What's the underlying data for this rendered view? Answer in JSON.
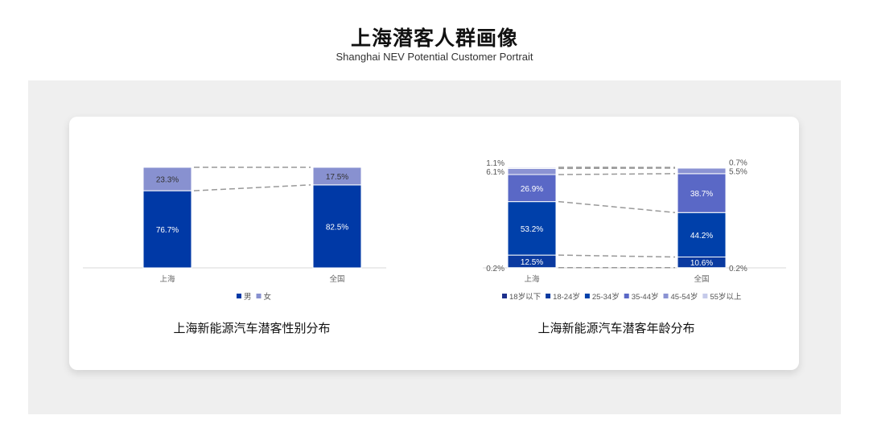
{
  "header": {
    "title": "上海潜客人群画像",
    "subtitle": "Shanghai NEV Potential Customer Portrait"
  },
  "chart_data": [
    {
      "type": "bar",
      "stacked": true,
      "title": "上海新能源汽车潜客性别分布",
      "categories": [
        "上海",
        "全国"
      ],
      "series": [
        {
          "name": "男",
          "values": [
            76.7,
            82.5
          ],
          "color": "#0039a6",
          "label_color": "#ffffff"
        },
        {
          "name": "女",
          "values": [
            23.3,
            17.5
          ],
          "color": "#8891d0",
          "label_color": "#333333"
        }
      ],
      "labels": [
        [
          "76.7%",
          "82.5%"
        ],
        [
          "23.3%",
          "17.5%"
        ]
      ],
      "ylim": [
        0,
        100
      ],
      "legend": "bottom",
      "grid": false
    },
    {
      "type": "bar",
      "stacked": true,
      "title": "上海新能源汽车潜客年龄分布",
      "categories": [
        "上海",
        "全国"
      ],
      "series": [
        {
          "name": "18岁以下",
          "values": [
            0.2,
            0.2
          ],
          "color": "#1c2f8c",
          "label_color": "#555555"
        },
        {
          "name": "18-24岁",
          "values": [
            12.5,
            10.6
          ],
          "color": "#0a3aa0",
          "label_color": "#ffffff"
        },
        {
          "name": "25-34岁",
          "values": [
            53.2,
            44.2
          ],
          "color": "#0040aa",
          "label_color": "#ffffff"
        },
        {
          "name": "35-44岁",
          "values": [
            26.9,
            38.7
          ],
          "color": "#5a68c6",
          "label_color": "#ffffff"
        },
        {
          "name": "45-54岁",
          "values": [
            6.1,
            5.5
          ],
          "color": "#8b93d3",
          "label_color": "#444444"
        },
        {
          "name": "55岁以上",
          "values": [
            1.1,
            0.7
          ],
          "color": "#c6cbea",
          "label_color": "#444444"
        }
      ],
      "labels": [
        [
          "0.2%",
          "0.2%"
        ],
        [
          "12.5%",
          "10.6%"
        ],
        [
          "53.2%",
          "44.2%"
        ],
        [
          "26.9%",
          "38.7%"
        ],
        [
          "6.1%",
          "5.5%"
        ],
        [
          "1.1%",
          "0.7%"
        ]
      ],
      "ylim": [
        0,
        100
      ],
      "legend": "bottom",
      "grid": false
    }
  ]
}
